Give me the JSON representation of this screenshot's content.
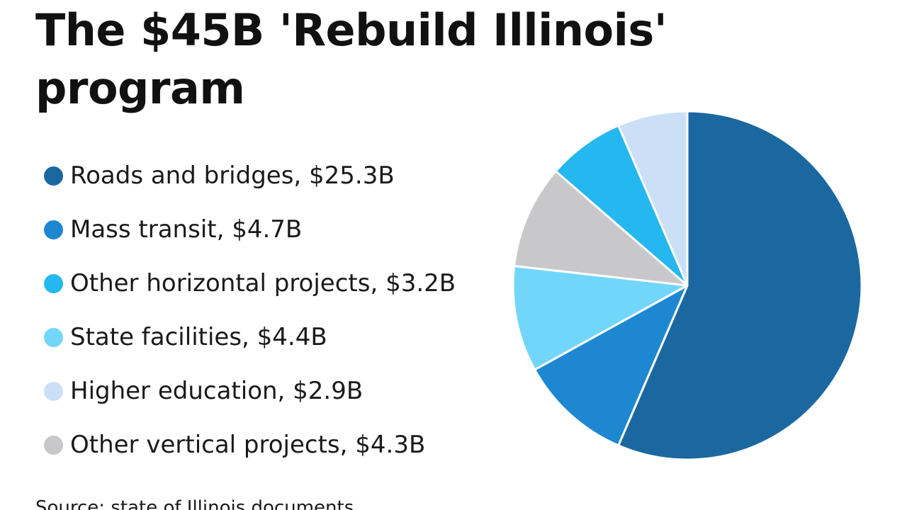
{
  "header": {
    "title": "The $45B 'Rebuild Illinois' program"
  },
  "legend": {
    "items": [
      {
        "label": "Roads and bridges, $25.3B",
        "color": "#1b68a0"
      },
      {
        "label": "Mass transit, $4.7B",
        "color": "#1e87d2"
      },
      {
        "label": "Other horizontal projects, $3.2B",
        "color": "#24b7f0"
      },
      {
        "label": "State facilities, $4.4B",
        "color": "#72d6fb"
      },
      {
        "label": "Higher education, $2.9B",
        "color": "#cbe0f6"
      },
      {
        "label": "Other vertical projects, $4.3B",
        "color": "#c8c8ca"
      }
    ]
  },
  "footer": {
    "source": "Source: state of Illinois documents"
  },
  "chart_data": {
    "type": "pie",
    "title": "The $45B 'Rebuild Illinois' program",
    "unit": "$B",
    "start": "12 o'clock",
    "direction": "clockwise",
    "slices": [
      {
        "label": "Roads and bridges",
        "value": 25.3,
        "color": "#1b68a0"
      },
      {
        "label": "Mass transit",
        "value": 4.7,
        "color": "#1e87d2"
      },
      {
        "label": "State facilities",
        "value": 4.4,
        "color": "#72d6fb"
      },
      {
        "label": "Other vertical projects",
        "value": 4.3,
        "color": "#c8c8ca"
      },
      {
        "label": "Other horizontal projects",
        "value": 3.2,
        "color": "#24b7f0"
      },
      {
        "label": "Higher education",
        "value": 2.9,
        "color": "#cbe0f6"
      }
    ],
    "legend_placement": "left"
  }
}
